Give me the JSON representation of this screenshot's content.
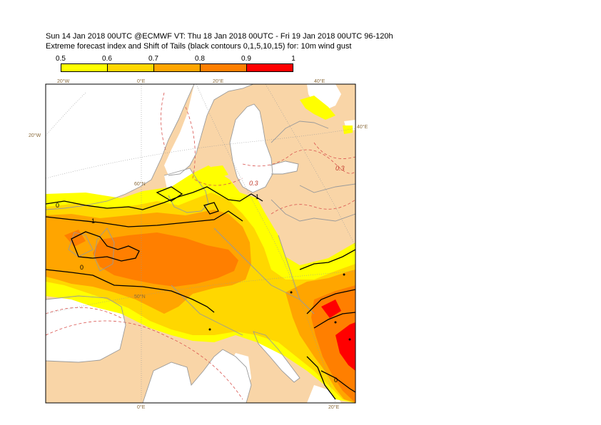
{
  "header": {
    "line1": "Sun 14 Jan 2018 00UTC @ECMWF VT: Thu 18 Jan 2018 00UTC - Fri 19 Jan 2018 00UTC  96-120h",
    "line2": "Extreme forecast index and Shift of Tails (black contours 0,1,5,10,15) for: 10m wind gust"
  },
  "colorbar": {
    "labels": [
      "0.5",
      "0.6",
      "0.7",
      "0.8",
      "0.9",
      "1"
    ],
    "colors": [
      "#ffff00",
      "#ffd700",
      "#ffa500",
      "#ff7f00",
      "#ff0000"
    ]
  },
  "map": {
    "colors": {
      "land": "#f9d5a7",
      "sea": "#ffffff",
      "coast": "#9a9a9a",
      "sot_contour": "#000000",
      "dashed_contour": "#d9534f"
    },
    "grid_labels": {
      "lon_top": [
        "20°W",
        "0°E",
        "20°E",
        "40°E"
      ],
      "lon_right": "40°E",
      "lat_left": "20°W",
      "lat_60": "60°N",
      "lat_50": "50°N",
      "lon_bottom": [
        "0°E",
        "20°E"
      ]
    },
    "contour_labels": [
      "0",
      "1",
      "0",
      "1",
      "0"
    ],
    "dashed_labels": [
      "0.3",
      "0.3"
    ]
  }
}
